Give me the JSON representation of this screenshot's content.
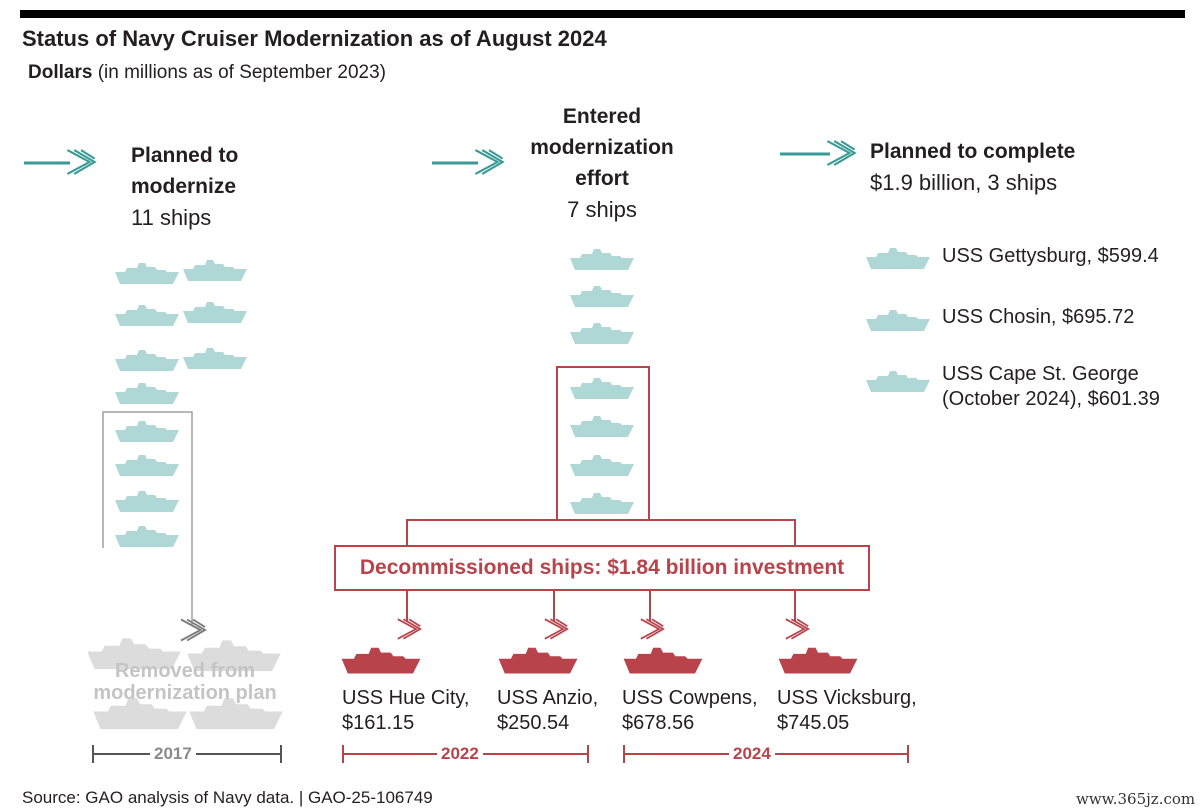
{
  "title": "Status of Navy Cruiser Modernization as of August 2024",
  "subtitle": {
    "bold": "Dollars",
    "rest": " (in millions as of September 2023)"
  },
  "columns": {
    "planned": {
      "line1": "Planned to",
      "line2": "modernize",
      "count": "11 ships"
    },
    "entered": {
      "line1": "Entered",
      "line2": "modernization",
      "line3": "effort",
      "count": "7 ships"
    },
    "complete": {
      "line1": "Planned to complete",
      "line2": "$1.9 billion, 3 ships"
    }
  },
  "completed_ships": [
    {
      "label": "USS Gettysburg, $599.4"
    },
    {
      "label": "USS Chosin, $695.72"
    },
    {
      "label1": "USS Cape St. George",
      "label2": "(October 2024), $601.39"
    }
  ],
  "decommissioned": {
    "label": "Decommissioned ships: $1.84 billion investment",
    "ships": [
      {
        "name": "USS Hue City,",
        "amount": "$161.15"
      },
      {
        "name": "USS Anzio,",
        "amount": "$250.54"
      },
      {
        "name": "USS Cowpens,",
        "amount": "$678.56"
      },
      {
        "name": "USS Vicksburg,",
        "amount": "$745.05"
      }
    ]
  },
  "removed": {
    "label1": "Removed from",
    "label2": "modernization plan"
  },
  "years": {
    "removed": "2017",
    "first": "2022",
    "second": "2024"
  },
  "source": "Source: GAO analysis of Navy data.  |  GAO-25-106749",
  "watermark": "www.365jz.com",
  "colors": {
    "teal": "#3a9a96",
    "ship_teal": "#aed7d6",
    "red": "#b8434b",
    "grey": "#9a9a9a"
  },
  "icons": {
    "ship": "ship-icon",
    "arrow": "flow-arrow-icon"
  }
}
